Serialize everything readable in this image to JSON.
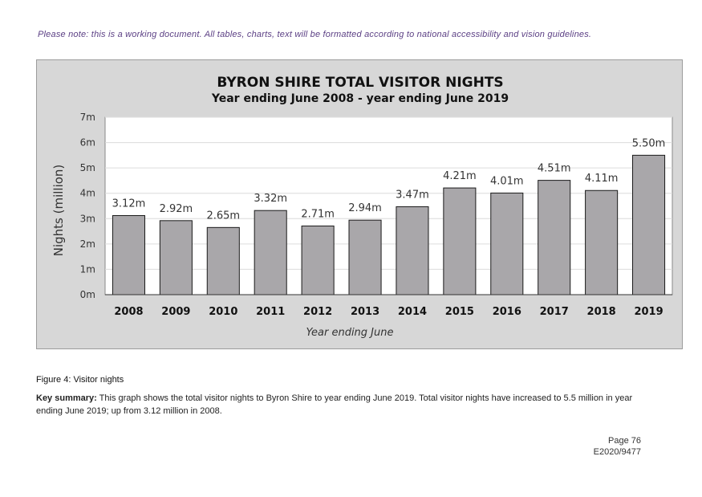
{
  "note": "Please note: this is a working document. All tables, charts, text will be formatted according to national accessibility and vision guidelines.",
  "chart_data": {
    "type": "bar",
    "title": "BYRON SHIRE TOTAL VISITOR NIGHTS",
    "subtitle": "Year ending June 2008 - year ending June 2019",
    "xlabel": "Year ending June",
    "ylabel": "Nights (million)",
    "ylim": [
      0,
      7
    ],
    "yticks": [
      "0m",
      "1m",
      "2m",
      "3m",
      "4m",
      "5m",
      "6m",
      "7m"
    ],
    "grid": true,
    "categories": [
      "2008",
      "2009",
      "2010",
      "2011",
      "2012",
      "2013",
      "2014",
      "2015",
      "2016",
      "2017",
      "2018",
      "2019"
    ],
    "values": [
      3.12,
      2.92,
      2.65,
      3.32,
      2.71,
      2.94,
      3.47,
      4.21,
      4.01,
      4.51,
      4.11,
      5.5
    ],
    "data_labels": [
      "3.12m",
      "2.92m",
      "2.65m",
      "3.32m",
      "2.71m",
      "2.94m",
      "3.47m",
      "4.21m",
      "4.01m",
      "4.51m",
      "4.11m",
      "5.50m"
    ],
    "colors": {
      "bar": "#a9a7aa",
      "bar_stroke": "#1a1a1a",
      "plot_bg": "#ffffff",
      "frame_bg": "#d7d7d7",
      "grid": "#dcdcdc"
    }
  },
  "caption": "Figure 4: Visitor nights",
  "summary": {
    "label": "Key summary:",
    "text": " This graph shows the total visitor nights to Byron Shire to year ending June 2019. Total visitor nights have increased to 5.5 million in year ending June 2019; up from 3.12 million in 2008."
  },
  "page_number": "Page 76",
  "doc_ref": "E2020/9477"
}
